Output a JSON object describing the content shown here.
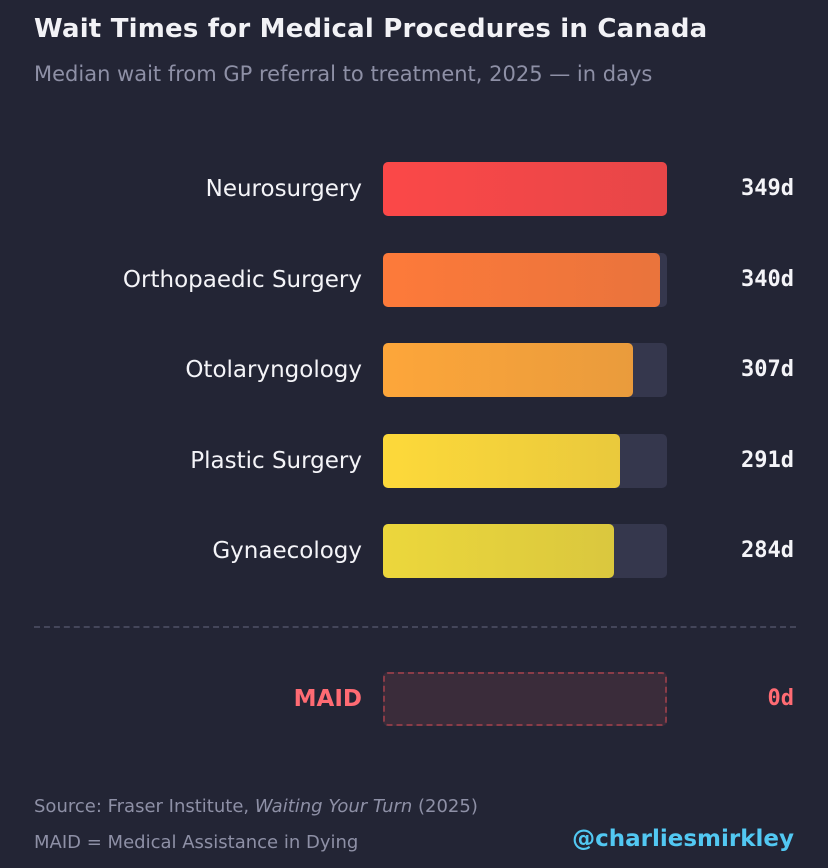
{
  "chart_data": {
    "type": "bar",
    "orientation": "horizontal",
    "title": "Wait Times for Medical Procedures in Canada",
    "subtitle": "Median wait from GP referral to treatment, 2025 — in days",
    "categories": [
      "Neurosurgery",
      "Orthopaedic Surgery",
      "Otolaryngology",
      "Plastic Surgery",
      "Gynaecology"
    ],
    "values": [
      349,
      340,
      307,
      291,
      284
    ],
    "value_labels": [
      "349d",
      "340d",
      "307d",
      "291d",
      "284d"
    ],
    "colors": [
      "#fb4848",
      "#fd7a3a",
      "#fda63a",
      "#fdd93a",
      "#ecd73c"
    ],
    "xlim": [
      0,
      349
    ],
    "highlight": {
      "category": "MAID",
      "value": 0,
      "value_label": "0d",
      "color": "#ff6b73"
    },
    "source_prefix": "Source: Fraser Institute, ",
    "source_title": "Waiting Your Turn",
    "source_suffix": " (2025)",
    "note": "MAID = Medical Assistance in Dying",
    "handle": "@charliesmirkley"
  }
}
